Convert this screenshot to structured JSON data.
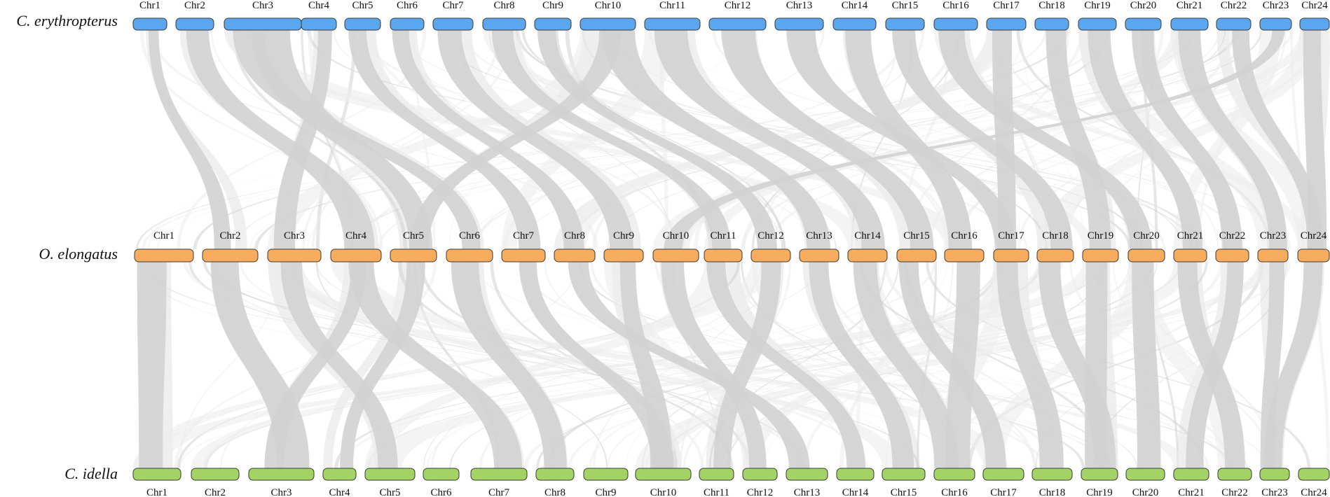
{
  "genomes": [
    {
      "species": "C. erythropterus",
      "color": "#5aa7ef",
      "chromosomes": [
        "Chr1",
        "Chr2",
        "Chr3",
        "Chr4",
        "Chr5",
        "Chr6",
        "Chr7",
        "Chr8",
        "Chr9",
        "Chr10",
        "Chr11",
        "Chr12",
        "Chr13",
        "Chr14",
        "Chr15",
        "Chr16",
        "Chr17",
        "Chr18",
        "Chr19",
        "Chr20",
        "Chr21",
        "Chr22",
        "Chr23",
        "Chr24"
      ],
      "label_side": "above"
    },
    {
      "species": "O. elongatus",
      "color": "#f8ac5e",
      "chromosomes": [
        "Chr1",
        "Chr2",
        "Chr3",
        "Chr4",
        "Chr5",
        "Chr6",
        "Chr7",
        "Chr8",
        "Chr9",
        "Chr10",
        "Chr11",
        "Chr12",
        "Chr13",
        "Chr14",
        "Chr15",
        "Chr16",
        "Chr17",
        "Chr18",
        "Chr19",
        "Chr20",
        "Chr21",
        "Chr22",
        "Chr23",
        "Chr24"
      ],
      "label_side": "above"
    },
    {
      "species": "C. idella",
      "color": "#a3d365",
      "chromosomes": [
        "Chr1",
        "Chr2",
        "Chr3",
        "Chr4",
        "Chr5",
        "Chr6",
        "Chr7",
        "Chr8",
        "Chr9",
        "Chr10",
        "Chr11",
        "Chr12",
        "Chr13",
        "Chr14",
        "Chr15",
        "Chr16",
        "Chr17",
        "Chr18",
        "Chr19",
        "Chr20",
        "Chr21",
        "Chr22",
        "Chr23",
        "Chr24"
      ],
      "label_side": "below"
    }
  ],
  "link_colors": {
    "highlight": "#d2d2d2",
    "background": "#ececec"
  }
}
